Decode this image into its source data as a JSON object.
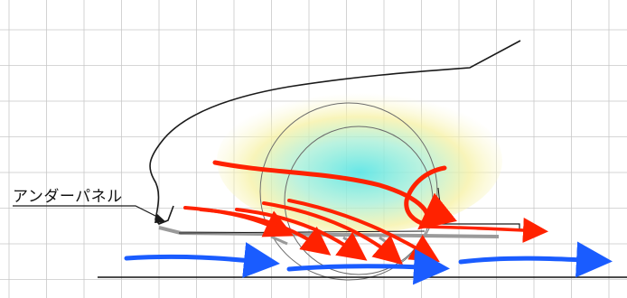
{
  "label": {
    "text": "アンダーパネル"
  },
  "colors": {
    "grid": "#c8c8c8",
    "outline": "#1a1a1a",
    "ground": "#111111",
    "panel": "#9a9a9a",
    "flow_red": "#ff2200",
    "flow_blue": "#1a5cff",
    "glow_yellow": "#f6f1a2",
    "glow_cyan": "#5fe6e6"
  },
  "icons": {
    "leader_arrow": "arrowhead-icon"
  }
}
